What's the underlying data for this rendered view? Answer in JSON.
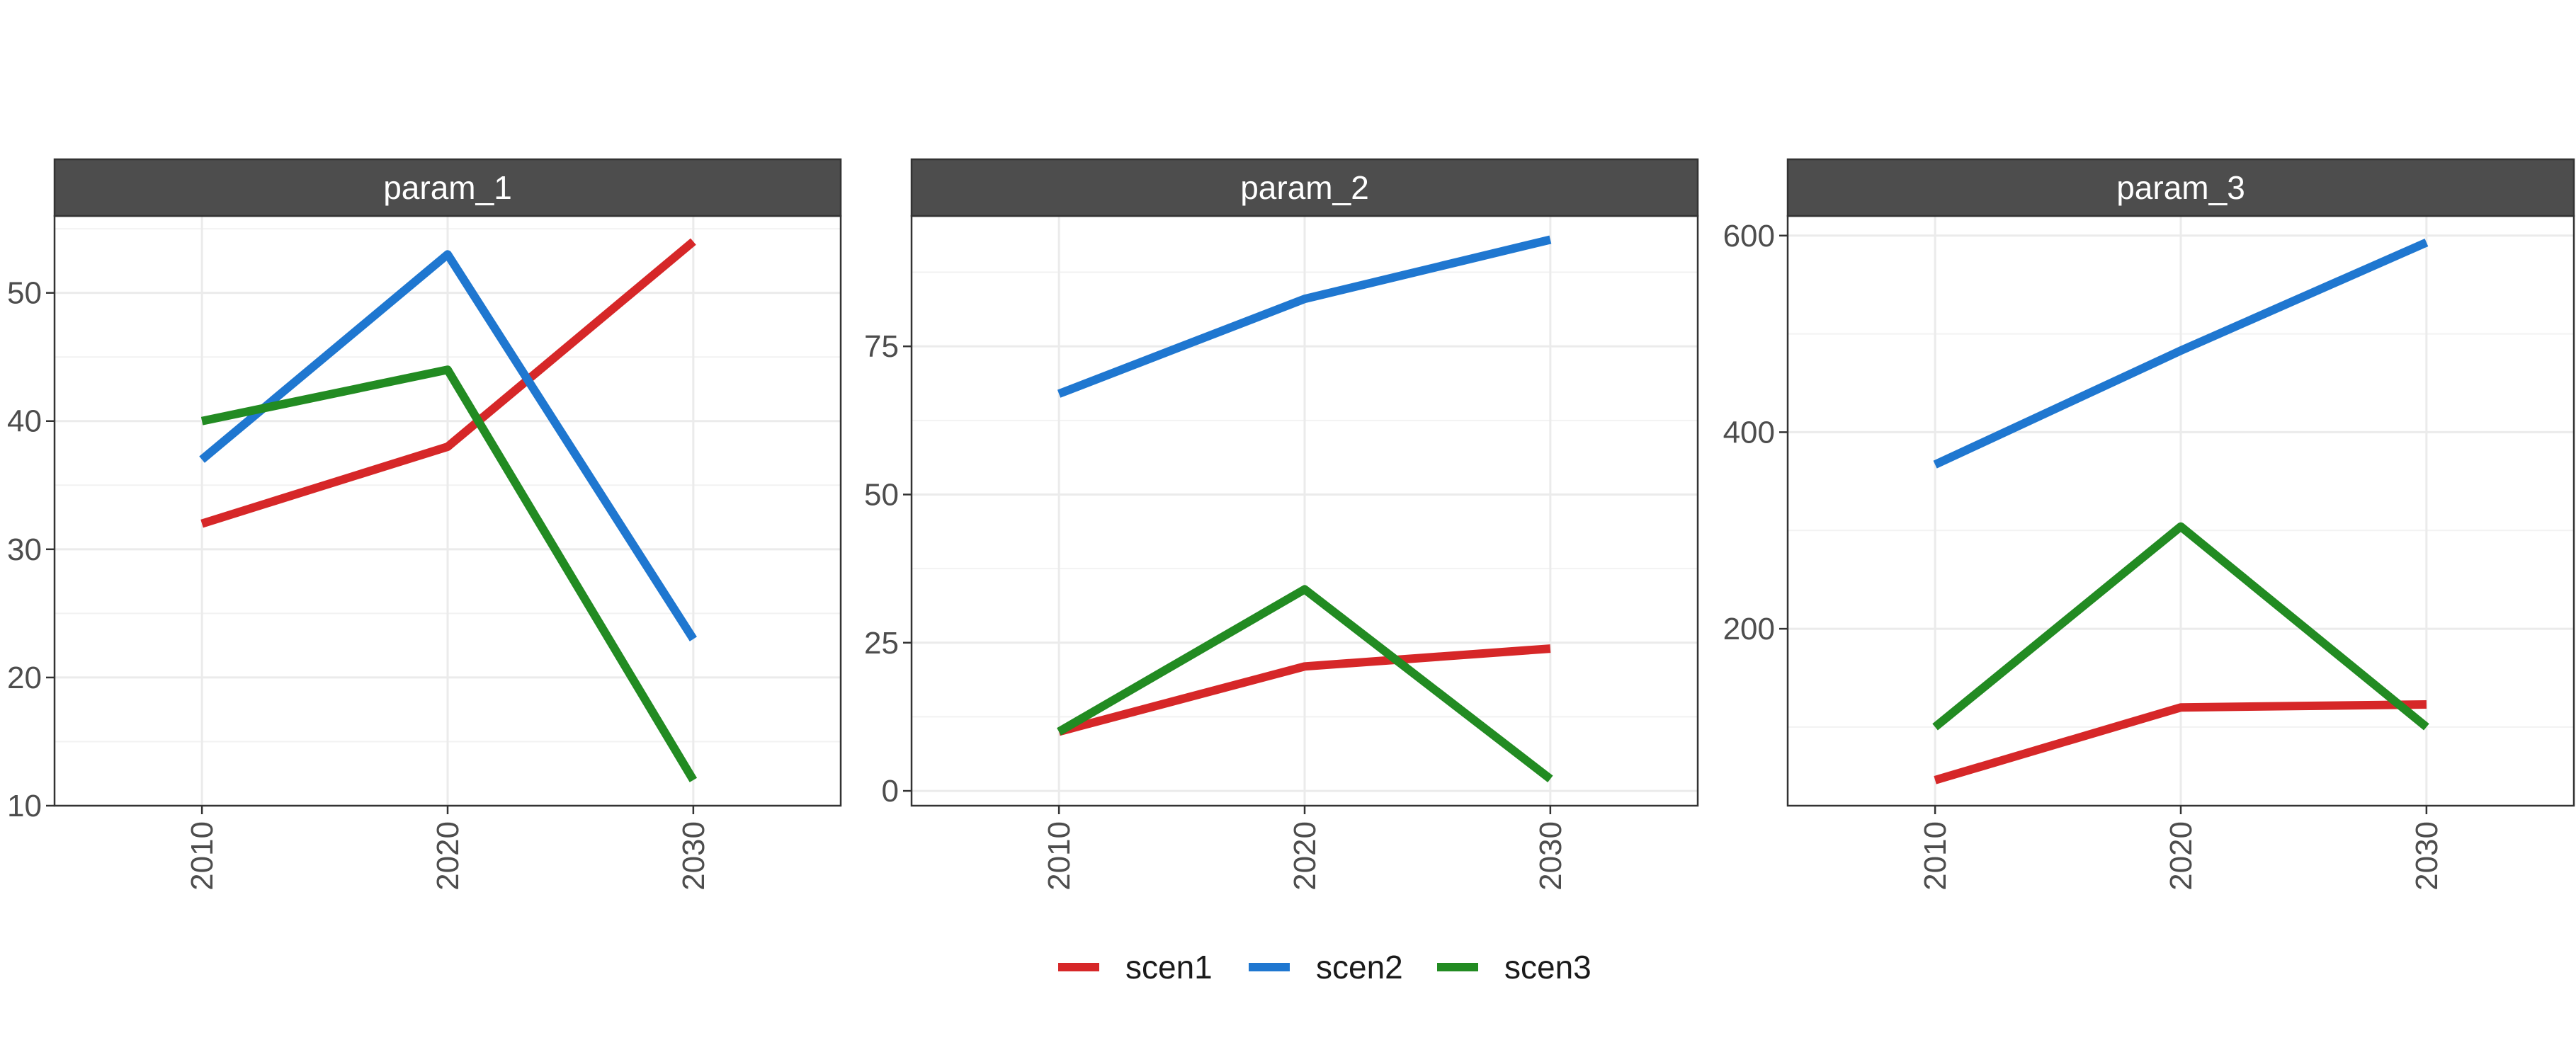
{
  "chart_data": {
    "type": "line",
    "facet_variable": "parameter",
    "legend": {
      "position": "bottom",
      "entries": [
        {
          "name": "scen1",
          "color": "#d62728"
        },
        {
          "name": "scen2",
          "color": "#1f77d0"
        },
        {
          "name": "scen3",
          "color": "#228b22"
        }
      ]
    },
    "grid": true,
    "x": [
      2010,
      2020,
      2030
    ],
    "x_tick_labels": [
      "2010",
      "2020",
      "2030"
    ],
    "x_tick_rotation": "vertical",
    "xlim": [
      2004,
      2036
    ],
    "panels": [
      {
        "title": "param_1",
        "ylim": [
          10,
          56
        ],
        "y_ticks": [
          10,
          20,
          30,
          40,
          50
        ],
        "y_tick_labels": [
          "10",
          "20",
          "30",
          "40",
          "50"
        ],
        "series": [
          {
            "name": "scen1",
            "values": [
              32,
              38,
              54
            ]
          },
          {
            "name": "scen2",
            "values": [
              37,
              53,
              23
            ]
          },
          {
            "name": "scen3",
            "values": [
              40,
              44,
              12
            ]
          }
        ]
      },
      {
        "title": "param_2",
        "ylim": [
          -2.5,
          97
        ],
        "y_ticks": [
          0,
          25,
          50,
          75
        ],
        "y_tick_labels": [
          "0",
          "25",
          "50",
          "75"
        ],
        "series": [
          {
            "name": "scen1",
            "values": [
              10,
              21,
              24
            ]
          },
          {
            "name": "scen2",
            "values": [
              67,
              83,
              93
            ]
          },
          {
            "name": "scen3",
            "values": [
              10,
              34,
              2
            ]
          }
        ]
      },
      {
        "title": "param_3",
        "ylim": [
          20,
          620
        ],
        "y_ticks": [
          200,
          400,
          600
        ],
        "y_tick_labels": [
          "200",
          "400",
          "600"
        ],
        "series": [
          {
            "name": "scen1",
            "values": [
              46,
              120,
              123
            ]
          },
          {
            "name": "scen2",
            "values": [
              367,
              483,
              593
            ]
          },
          {
            "name": "scen3",
            "values": [
              100,
              304,
              100
            ]
          }
        ]
      }
    ]
  }
}
